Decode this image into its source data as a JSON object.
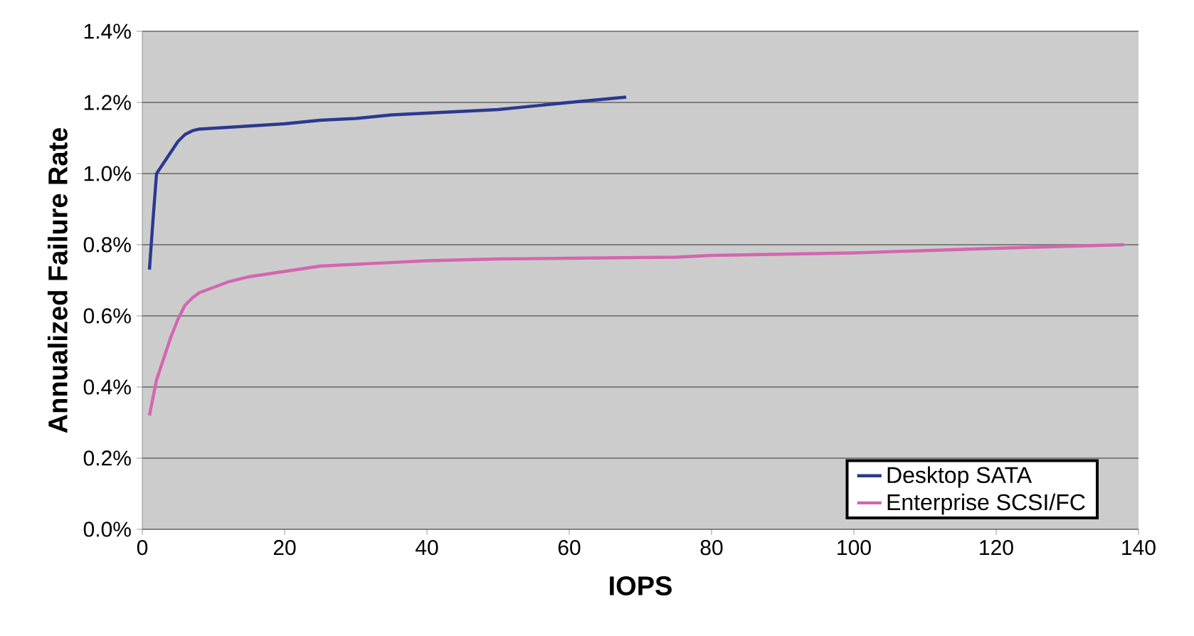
{
  "chart_data": {
    "type": "line",
    "xlabel": "IOPS",
    "ylabel": "Annualized Failure Rate",
    "xlim": [
      0,
      140
    ],
    "xticks": [
      0,
      20,
      40,
      60,
      80,
      100,
      120,
      140
    ],
    "ylim": [
      0,
      1.4
    ],
    "yticks": [
      {
        "value": 0,
        "label": "0.0%"
      },
      {
        "value": 0.2,
        "label": "0.2%"
      },
      {
        "value": 0.4,
        "label": "0.4%"
      },
      {
        "value": 0.6,
        "label": "0.6%"
      },
      {
        "value": 0.8,
        "label": "0.8%"
      },
      {
        "value": 1.0,
        "label": "1.0%"
      },
      {
        "value": 1.2,
        "label": "1.2%"
      },
      {
        "value": 1.4,
        "label": "1.4%"
      }
    ],
    "grid": "y",
    "legend": "bottom right",
    "series": [
      {
        "name": "Desktop SATA",
        "color": "#2b3990",
        "x": [
          1,
          1.5,
          2,
          3,
          4,
          5,
          6,
          7,
          8,
          12,
          20,
          25,
          30,
          35,
          40,
          45,
          50,
          55,
          60,
          68
        ],
        "values": [
          0.73,
          0.87,
          1.0,
          1.03,
          1.06,
          1.09,
          1.11,
          1.12,
          1.125,
          1.13,
          1.14,
          1.15,
          1.155,
          1.165,
          1.17,
          1.175,
          1.18,
          1.19,
          1.2,
          1.215
        ]
      },
      {
        "name": "Enterprise SCSI/FC",
        "color": "#d466b0",
        "x": [
          1,
          2,
          3,
          4,
          5,
          6,
          7,
          8,
          10,
          12,
          15,
          20,
          25,
          30,
          40,
          50,
          60,
          75,
          80,
          100,
          120,
          138
        ],
        "values": [
          0.32,
          0.42,
          0.48,
          0.54,
          0.59,
          0.63,
          0.65,
          0.665,
          0.68,
          0.695,
          0.71,
          0.725,
          0.74,
          0.745,
          0.755,
          0.76,
          0.762,
          0.765,
          0.77,
          0.777,
          0.79,
          0.8
        ]
      }
    ]
  }
}
